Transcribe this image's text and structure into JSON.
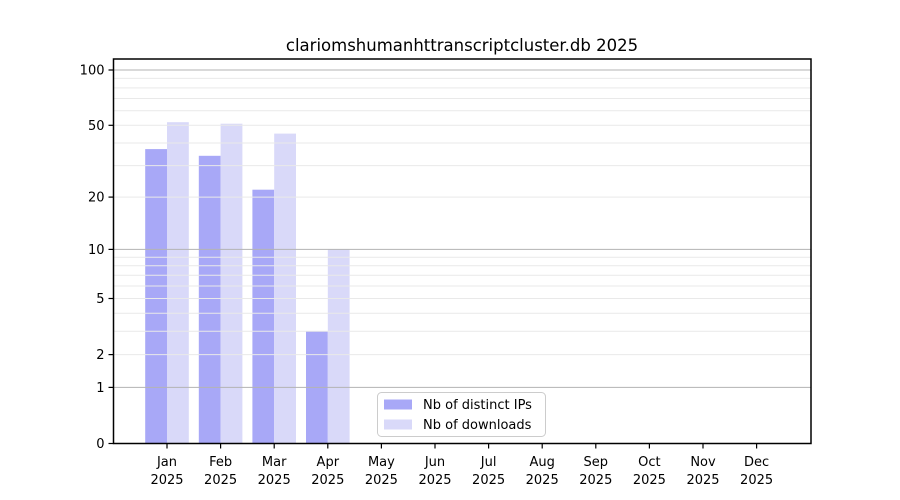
{
  "page": {
    "background": "#ffffff"
  },
  "chart_data": {
    "type": "bar",
    "title": "clariomshumanhttranscriptcluster.db 2025",
    "categories": [
      "Jan",
      "Feb",
      "Mar",
      "Apr",
      "May",
      "Jun",
      "Jul",
      "Aug",
      "Sep",
      "Oct",
      "Nov",
      "Dec"
    ],
    "x_tick_year_label": "2025",
    "series": [
      {
        "name": "Nb of distinct IPs",
        "color": "#a8a8f7",
        "values": [
          37,
          34,
          22,
          3,
          0,
          0,
          0,
          0,
          0,
          0,
          0,
          0
        ]
      },
      {
        "name": "Nb of downloads",
        "color": "#d9d9f9",
        "values": [
          52,
          51,
          45,
          10,
          0,
          0,
          0,
          0,
          0,
          0,
          0,
          0
        ]
      }
    ],
    "y_axis": {
      "scale": "log1p",
      "tick_labels": [
        0,
        1,
        2,
        5,
        10,
        20,
        50,
        100
      ],
      "minor_gridlines": [
        3,
        4,
        6,
        7,
        8,
        9,
        30,
        40,
        60,
        70,
        80,
        90
      ],
      "decade_gridlines": [
        1,
        10,
        100
      ],
      "ylim": [
        0,
        113
      ]
    },
    "grid": {
      "decade_color": "#b3b3b3",
      "light_color": "#e9e9e9",
      "on": true
    },
    "legend": {
      "position": "bottom-center",
      "border_color": "#cccccc",
      "background": "#ffffff"
    },
    "xlabel": "",
    "ylabel": ""
  }
}
